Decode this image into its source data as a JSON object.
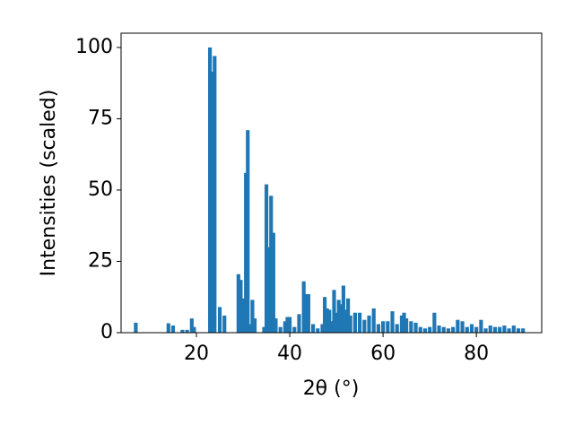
{
  "chart_data": {
    "type": "bar",
    "xlabel": "2θ (°)",
    "ylabel": "Intensities (scaled)",
    "x": [
      7,
      14,
      15,
      17,
      18,
      19,
      19.5,
      22.9,
      23.5,
      23.9,
      25,
      26,
      29,
      29.5,
      30,
      30.6,
      31,
      31.5,
      32,
      32.5,
      34.5,
      35,
      35.5,
      36,
      36.5,
      37,
      38,
      39,
      39.5,
      40,
      41,
      42,
      43,
      43.5,
      44,
      45,
      46,
      47,
      47.5,
      48,
      48.5,
      49,
      49.5,
      50,
      50.5,
      51,
      51.5,
      52,
      52.5,
      53,
      54,
      55,
      56,
      57,
      58,
      59,
      60,
      61,
      62,
      63,
      64,
      64.5,
      65,
      66,
      67,
      68,
      69,
      70,
      71,
      72,
      73,
      74,
      75,
      76,
      77,
      78,
      79,
      80,
      81,
      82,
      83,
      84,
      85,
      86,
      87,
      88,
      89,
      90
    ],
    "values": [
      3.5,
      3.3,
      2.5,
      1,
      1,
      5,
      2,
      100,
      91.5,
      97,
      9,
      6,
      20.5,
      18.5,
      12,
      56,
      71,
      3,
      11.5,
      5,
      2,
      52,
      30,
      48,
      35,
      5,
      2,
      4,
      5.5,
      5.5,
      2,
      6.5,
      18,
      13.5,
      13.5,
      3,
      1.5,
      3,
      12.5,
      8.5,
      8,
      4,
      15,
      7,
      11.5,
      10,
      16.5,
      8,
      12,
      6,
      7,
      7,
      4.5,
      6,
      8.5,
      3,
      4,
      4,
      7.5,
      3,
      6,
      7,
      5,
      4,
      3.5,
      2,
      1.5,
      2,
      7,
      2.5,
      2,
      1.5,
      2,
      4.5,
      4,
      2,
      3,
      2,
      4.5,
      1.5,
      2.5,
      2,
      2,
      2.5,
      1.5,
      2.5,
      1.5,
      1.5
    ],
    "color": "#1f77b4",
    "xlim": [
      3.85,
      94.0
    ],
    "xticks": [
      20,
      40,
      60,
      80
    ],
    "ylim": [
      0,
      105
    ],
    "yticks": [
      0,
      25,
      50,
      75,
      100
    ],
    "grid": false
  }
}
